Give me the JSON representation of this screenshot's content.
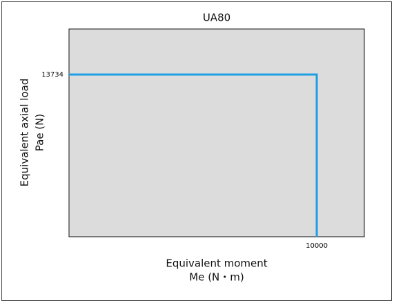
{
  "chart_data": {
    "type": "line",
    "title": "UA80",
    "x_label": [
      "Equivalent moment",
      "Me (N・m)"
    ],
    "y_label": [
      "Equivalent axial load",
      "Pae (N)"
    ],
    "x": [
      0,
      10000,
      10000
    ],
    "series": [
      {
        "color": "#1e9fe3",
        "values": [
          13734,
          13734,
          0
        ]
      }
    ],
    "xlim": [
      0,
      11920
    ],
    "ylim": [
      0,
      17590
    ],
    "xticks": [
      10000
    ],
    "yticks": [
      13734
    ],
    "grid": false
  }
}
